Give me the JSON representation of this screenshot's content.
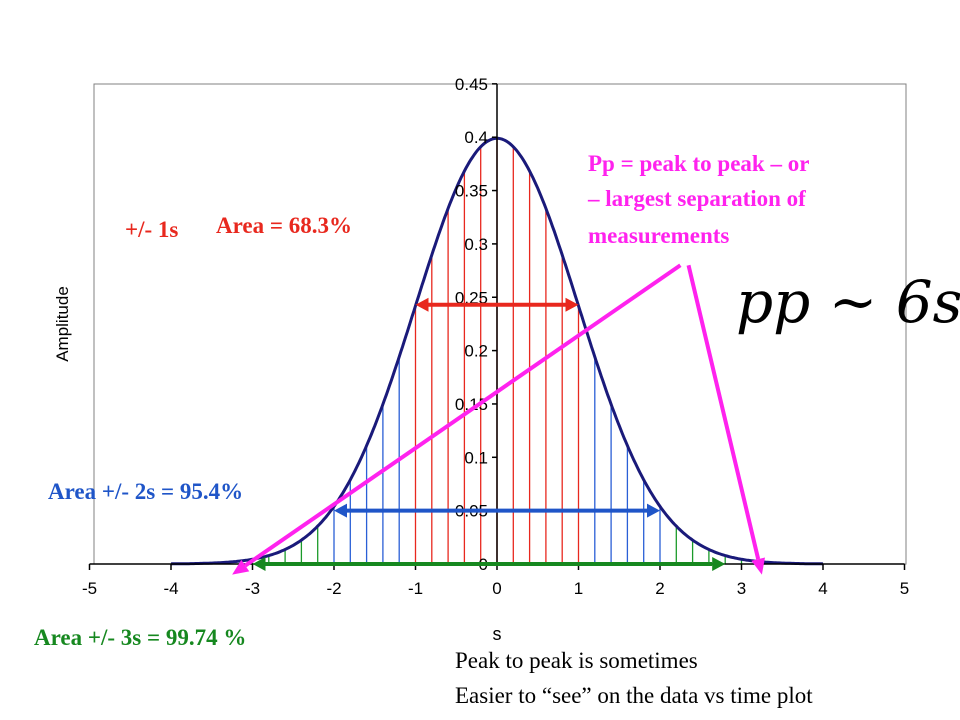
{
  "chart_data": {
    "type": "bar",
    "title": "",
    "xlabel": "s",
    "ylabel": "Amplitude",
    "xlim": [
      -5,
      5
    ],
    "ylim": [
      0,
      0.45
    ],
    "x_ticks": [
      "-5",
      "-4",
      "-3",
      "-2",
      "-1",
      "0",
      "1",
      "2",
      "3",
      "4",
      "5"
    ],
    "y_ticks": [
      "0",
      "0.05",
      "0.1",
      "0.15",
      "0.2",
      "0.25",
      "0.3",
      "0.35",
      "0.4",
      "0.45"
    ],
    "curve": {
      "type": "line",
      "function": "normal pdf",
      "mean": 0,
      "sd": 1,
      "x_range": [
        -4,
        4
      ]
    },
    "bars": {
      "x": [
        -3.0,
        -2.8,
        -2.6,
        -2.4,
        -2.2,
        -2.0,
        -1.8,
        -1.6,
        -1.4,
        -1.2,
        -1.0,
        -0.8,
        -0.6,
        -0.4,
        -0.2,
        0.0,
        0.2,
        0.4,
        0.6,
        0.8,
        1.0,
        1.2,
        1.4,
        1.6,
        1.8,
        2.0,
        2.2,
        2.4,
        2.6,
        2.8,
        3.0
      ],
      "values": [
        0.004,
        0.008,
        0.014,
        0.022,
        0.035,
        0.054,
        0.079,
        0.111,
        0.15,
        0.194,
        0.242,
        0.29,
        0.333,
        0.368,
        0.391,
        0.399,
        0.391,
        0.368,
        0.333,
        0.29,
        0.242,
        0.194,
        0.15,
        0.111,
        0.079,
        0.054,
        0.035,
        0.022,
        0.014,
        0.008,
        0.004
      ],
      "band_colors": {
        "within_1s": "#e8281e",
        "within_2s": "#2a5fd6",
        "within_3s": "#1a9a2a"
      }
    },
    "arrows": [
      {
        "from": -1,
        "to": 1,
        "y": 0.243,
        "color": "#e8281e"
      },
      {
        "from": -2,
        "to": 2,
        "y": 0.05,
        "color": "#1f55c8"
      },
      {
        "from": -3,
        "to": 2.8,
        "y": 0.0,
        "color": "#16881f"
      }
    ],
    "pointers": [
      {
        "from_x": 2.25,
        "from_y": 0.28,
        "to_x": -3.25,
        "to_y": -0.01,
        "color": "#ff22ee"
      },
      {
        "from_x": 2.35,
        "from_y": 0.28,
        "to_x": 3.25,
        "to_y": -0.01,
        "color": "#ff22ee"
      }
    ],
    "grid": false,
    "legend": "none"
  },
  "annotations": {
    "pm1s": "+/- 1s",
    "area1": "Area = 68.3%",
    "area2": "Area +/- 2s = 95.4%",
    "area3": "Area +/- 3s = 99.74 %",
    "pp_line1": "Pp = peak to peak – or",
    "pp_line2": "– largest separation of",
    "pp_line3": "measurements",
    "formula": "pp ~ 6s",
    "note_line1": "Peak to peak is sometimes",
    "note_line2": "Easier to “see” on the data vs time plot"
  },
  "colors": {
    "red": "#e8281e",
    "blue": "#1f55c8",
    "green": "#16881f",
    "magenta": "#ff22ee",
    "curve": "#1a1a7a"
  }
}
